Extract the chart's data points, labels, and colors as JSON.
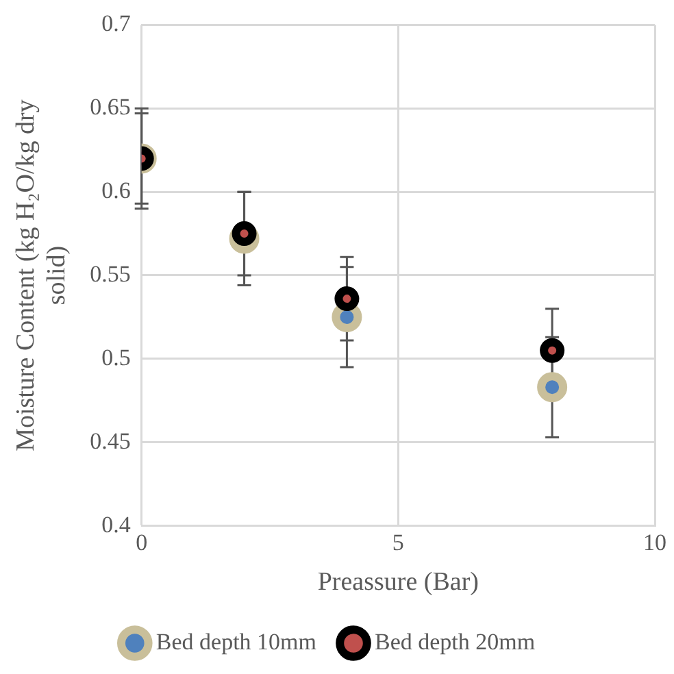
{
  "chart_data": {
    "type": "scatter",
    "xlabel": "Preassure (Bar)",
    "ylabel": "Moisture Content (kg H₂O/kg dry solid)",
    "xlim": [
      0,
      10
    ],
    "xticks": [
      0,
      5,
      10
    ],
    "ylim": [
      0.4,
      0.7
    ],
    "yticks": [
      0.4,
      0.45,
      0.5,
      0.55,
      0.6,
      0.65,
      0.7
    ],
    "x": [
      0,
      2,
      4,
      8
    ],
    "series": [
      {
        "name": "Bed depth 10mm",
        "color": "#c9bf9a",
        "values": [
          0.62,
          0.572,
          0.525,
          0.483
        ],
        "errors": [
          0.03,
          0.028,
          0.03,
          0.03
        ]
      },
      {
        "name": "Bed depth 20mm",
        "color": "#000000",
        "values": [
          0.62,
          0.575,
          0.536,
          0.505
        ],
        "errors": [
          0.027,
          0.025,
          0.025,
          0.025
        ]
      }
    ],
    "grid": true,
    "legend": "bottom",
    "marker": "circle"
  }
}
